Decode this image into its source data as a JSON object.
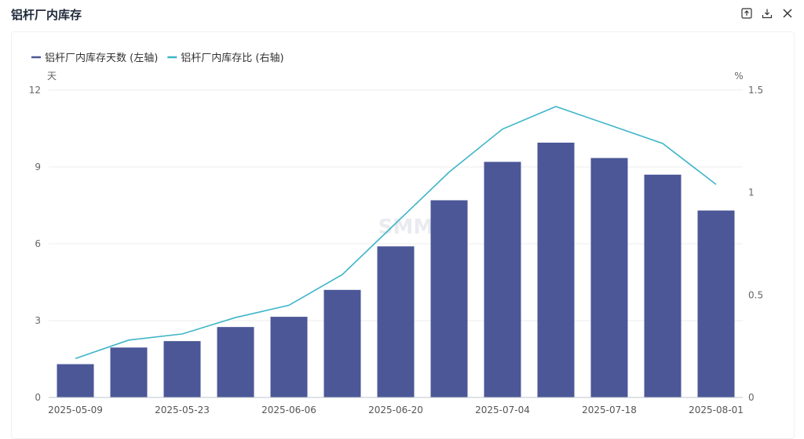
{
  "header": {
    "title": "铝杆厂内库存",
    "icons": [
      "export-icon",
      "download-icon",
      "close-icon"
    ]
  },
  "chart_data": {
    "type": "bar",
    "x": [
      "2025-05-09",
      "2025-05-16",
      "2025-05-23",
      "2025-05-30",
      "2025-06-06",
      "2025-06-13",
      "2025-06-20",
      "2025-06-27",
      "2025-07-04",
      "2025-07-11",
      "2025-07-18",
      "2025-07-25",
      "2025-08-01"
    ],
    "x_tick_labels": [
      "2025-05-09",
      "2025-05-23",
      "2025-06-06",
      "2025-06-20",
      "2025-07-04",
      "2025-07-18",
      "2025-08-01"
    ],
    "series": [
      {
        "name": "铝杆厂内库存天数 (左轴)",
        "type": "bar",
        "axis": "left",
        "color": "#4b5797",
        "values": [
          1.3,
          1.95,
          2.2,
          2.75,
          3.15,
          4.2,
          5.9,
          7.7,
          9.2,
          9.95,
          9.35,
          8.7,
          7.3
        ]
      },
      {
        "name": "铝杆厂内库存比 (右轴)",
        "type": "line",
        "axis": "right",
        "color": "#3eb5c8",
        "values": [
          0.19,
          0.28,
          0.31,
          0.39,
          0.45,
          0.6,
          0.85,
          1.1,
          1.31,
          1.42,
          1.33,
          1.24,
          1.04
        ]
      }
    ],
    "y_left": {
      "unit": "天",
      "min": 0,
      "max": 12,
      "ticks": [
        0,
        3,
        6,
        9,
        12
      ]
    },
    "y_right": {
      "unit": "%",
      "min": 0,
      "max": 1.5,
      "ticks": [
        0,
        0.5,
        1,
        1.5
      ]
    },
    "legend_position": "top-left",
    "grid": true,
    "watermark": "SMM"
  }
}
